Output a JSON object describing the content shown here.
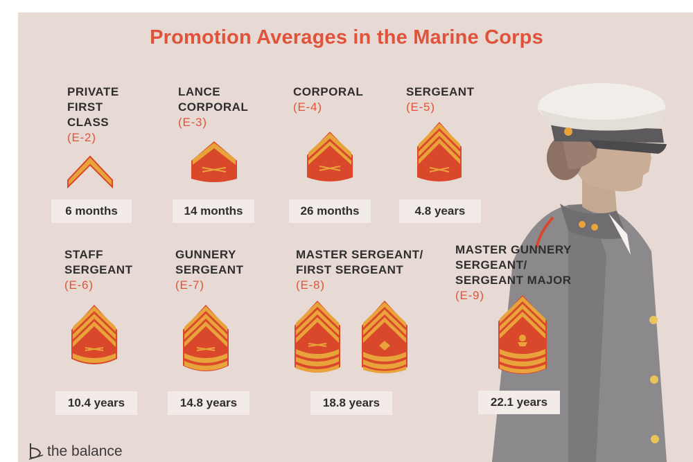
{
  "title": "Promotion Averages in the Marine Corps",
  "brand": "the balance",
  "ranks": [
    {
      "lines": [
        "PRIVATE",
        "FIRST",
        "CLASS"
      ],
      "grade": "(E-2)",
      "time": "6 months"
    },
    {
      "lines": [
        "LANCE",
        "CORPORAL"
      ],
      "grade": "(E-3)",
      "time": "14 months"
    },
    {
      "lines": [
        "CORPORAL"
      ],
      "grade": "(E-4)",
      "time": "26 months"
    },
    {
      "lines": [
        "SERGEANT"
      ],
      "grade": "(E-5)",
      "time": "4.8 years"
    },
    {
      "lines": [
        "STAFF",
        "SERGEANT"
      ],
      "grade": "(E-6)",
      "time": "10.4 years"
    },
    {
      "lines": [
        "GUNNERY",
        "SERGEANT"
      ],
      "grade": "(E-7)",
      "time": "14.8 years"
    },
    {
      "lines": [
        "MASTER SERGEANT/",
        "FIRST SERGEANT"
      ],
      "grade": "(E-8)",
      "time": "18.8 years"
    },
    {
      "lines": [
        "MASTER GUNNERY",
        "SERGEANT/",
        "SERGEANT MAJOR"
      ],
      "grade": "(E-9)",
      "time": "22.1 years"
    }
  ],
  "colors": {
    "background": "#e7d9d3",
    "title": "#e0533a",
    "insignia_gold": "#e8a33a",
    "insignia_red": "#d9482b",
    "value_box": "#f3ebe7",
    "uniform": "#8b898c"
  },
  "icons": {
    "chevron": "rank-insignia",
    "figure": "marine-officer-illustration",
    "logo": "the-balance-logo"
  }
}
